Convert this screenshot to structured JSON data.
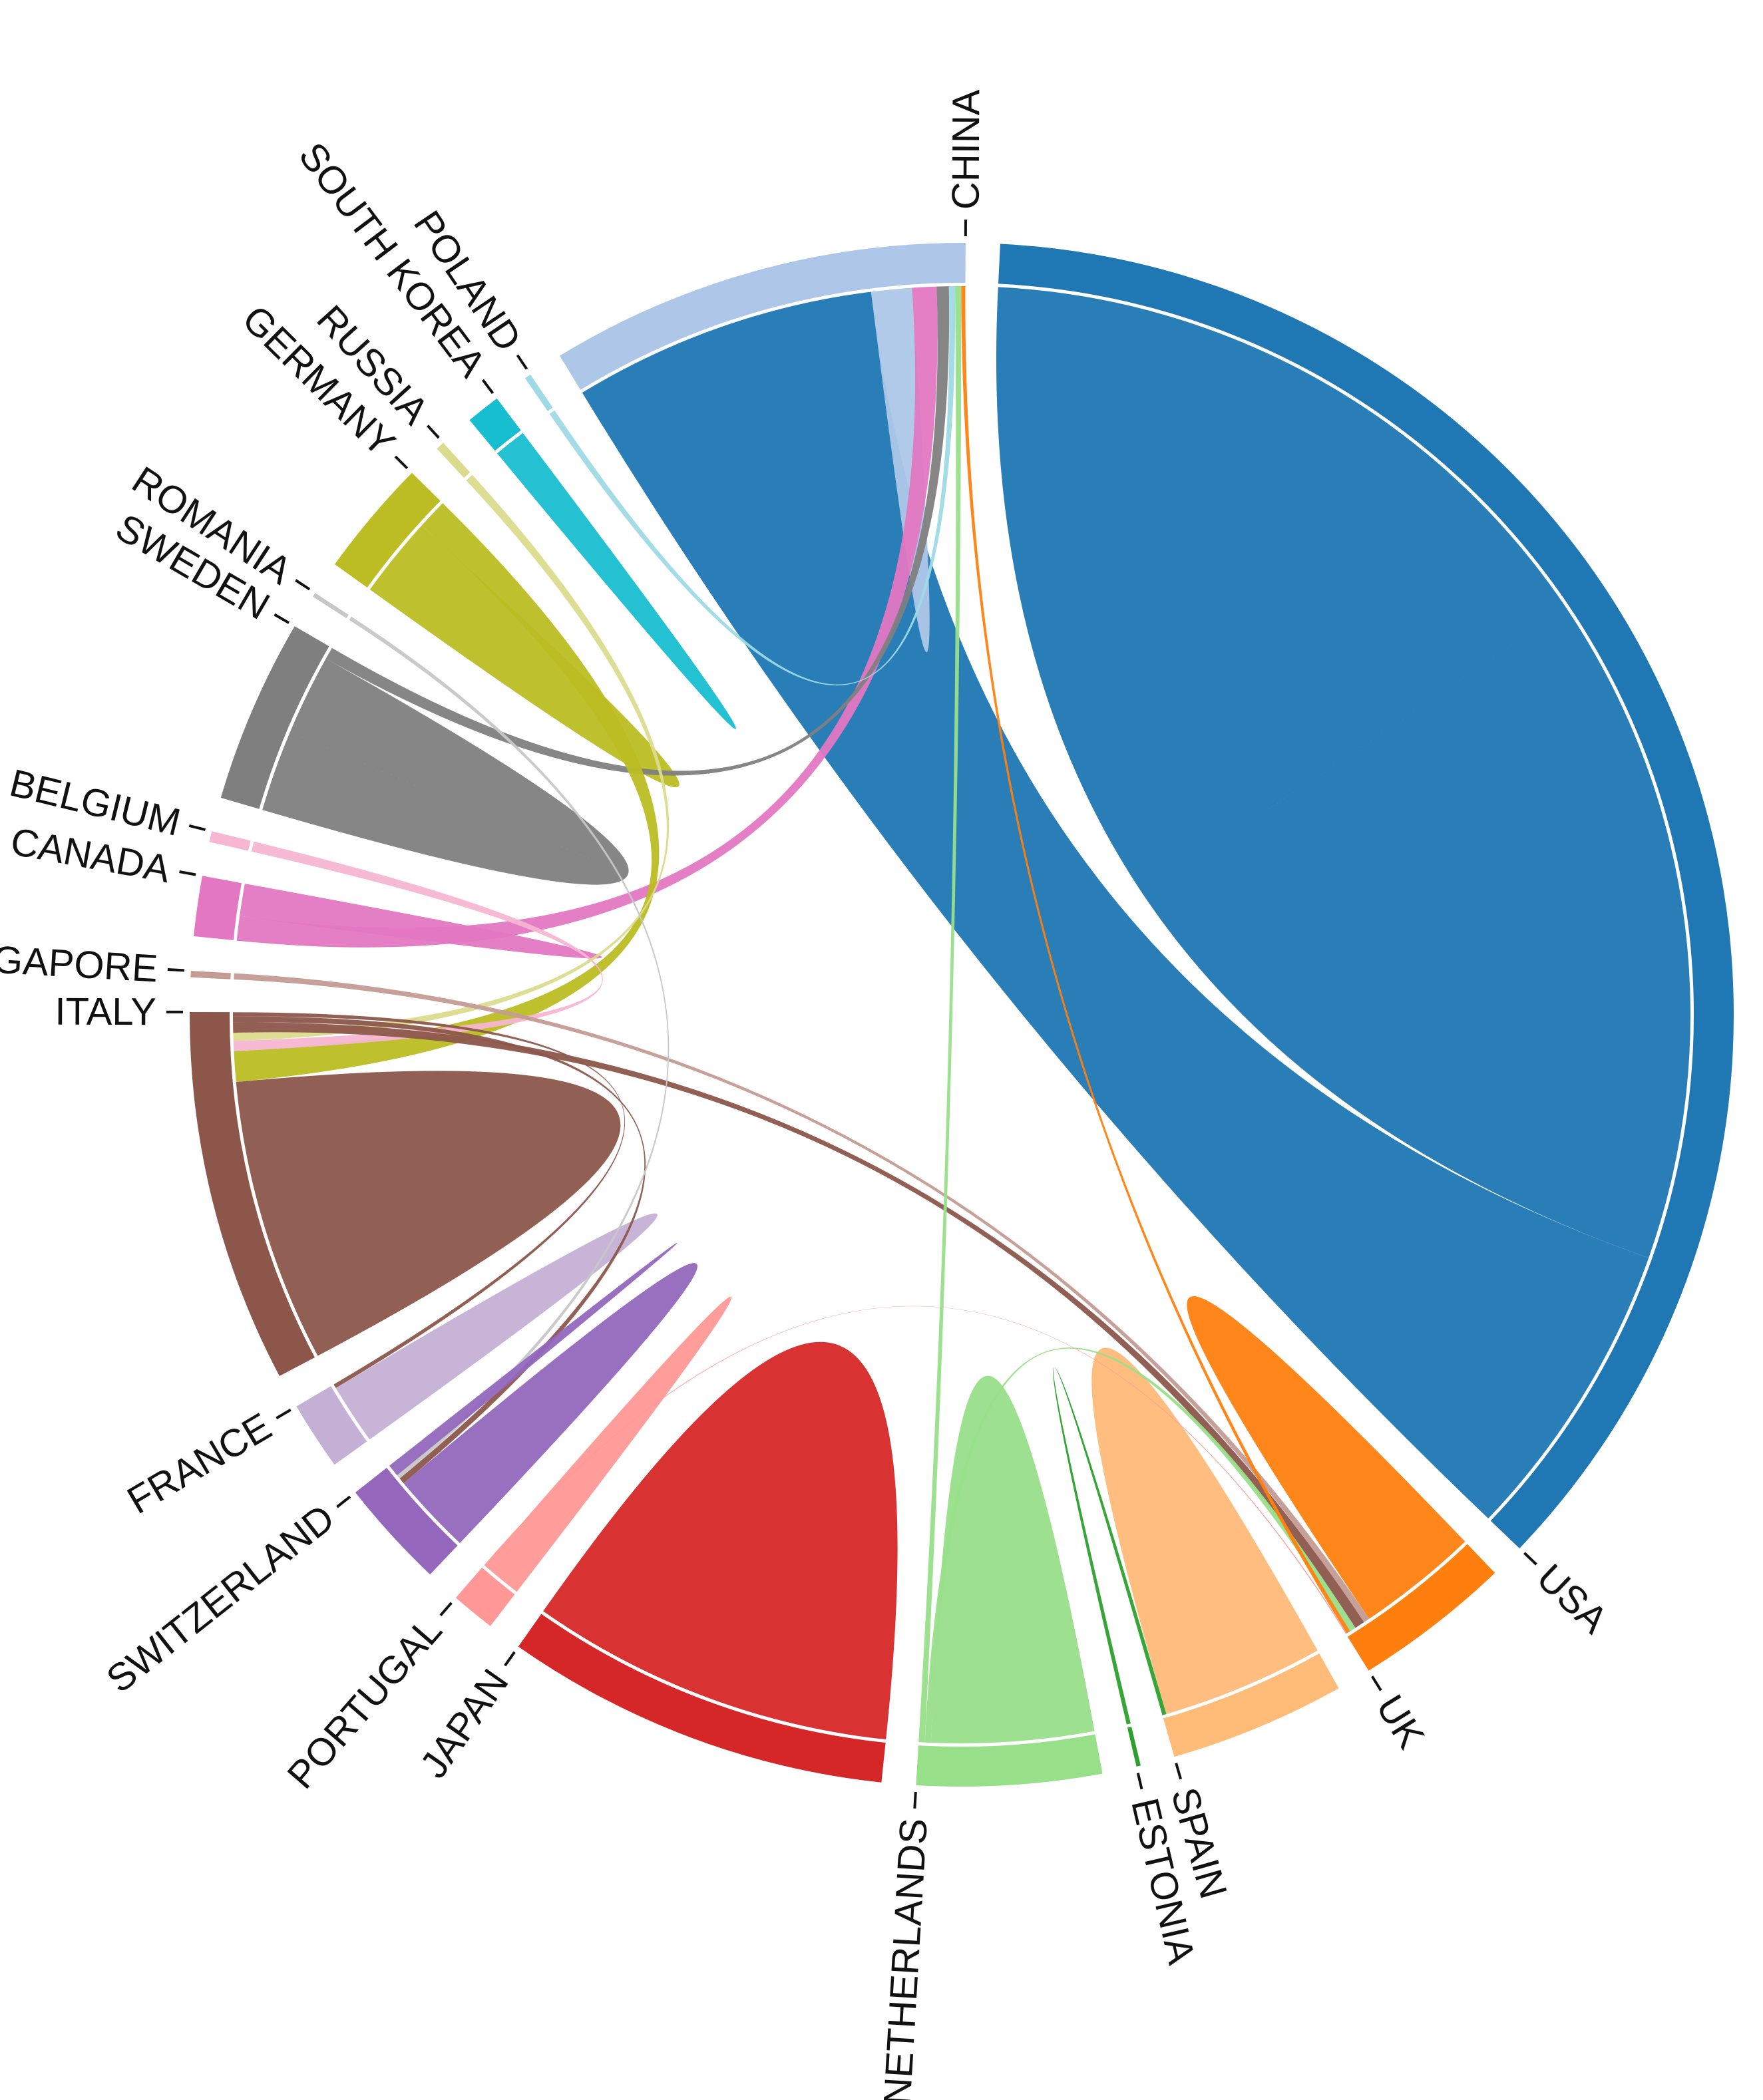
{
  "chart_data": {
    "type": "chord",
    "title": "",
    "groups": [
      {
        "name": "USA",
        "color": "#1f77b4"
      },
      {
        "name": "UK",
        "color": "#ff7f0e"
      },
      {
        "name": "SPAIN",
        "color": "#ffbb78"
      },
      {
        "name": "ESTONIA",
        "color": "#2ca02c"
      },
      {
        "name": "NETHERLANDS",
        "color": "#98df8a"
      },
      {
        "name": "JAPAN",
        "color": "#d62728"
      },
      {
        "name": "PORTUGAL",
        "color": "#ff9896"
      },
      {
        "name": "SWITZERLAND",
        "color": "#9467bd"
      },
      {
        "name": "FRANCE",
        "color": "#c5b0d5"
      },
      {
        "name": "ITALY",
        "color": "#8c564b"
      },
      {
        "name": "SINGAPORE",
        "color": "#c49c94"
      },
      {
        "name": "CANADA",
        "color": "#e377c2"
      },
      {
        "name": "BELGIUM",
        "color": "#f7b6d2"
      },
      {
        "name": "SWEDEN",
        "color": "#7f7f7f"
      },
      {
        "name": "ROMANIA",
        "color": "#c7c7c7"
      },
      {
        "name": "GERMANY",
        "color": "#bcbd22"
      },
      {
        "name": "RUSSIA",
        "color": "#dbdb8d"
      },
      {
        "name": "SOUTH KOREA",
        "color": "#17becf"
      },
      {
        "name": "POLAND",
        "color": "#9edae5"
      },
      {
        "name": "CHINA",
        "color": "#aec7e8"
      }
    ],
    "links": [
      {
        "source": "USA",
        "target": "USA",
        "value": 33
      },
      {
        "source": "USA",
        "target": "CHINA",
        "value": 15
      },
      {
        "source": "CHINA",
        "target": "CHINA",
        "value": 1
      },
      {
        "source": "UK",
        "target": "UK",
        "value": 3
      },
      {
        "source": "SPAIN",
        "target": "SPAIN",
        "value": 4
      },
      {
        "source": "NETHERLANDS",
        "target": "NETHERLANDS",
        "value": 4
      },
      {
        "source": "JAPAN",
        "target": "JAPAN",
        "value": 9
      },
      {
        "source": "ITALY",
        "target": "ITALY",
        "value": 7
      },
      {
        "source": "SWEDEN",
        "target": "SWEDEN",
        "value": 4
      },
      {
        "source": "PORTUGAL",
        "target": "PORTUGAL",
        "value": 1
      },
      {
        "source": "SWITZERLAND",
        "target": "SWITZERLAND",
        "value": 2
      },
      {
        "source": "FRANCE",
        "target": "FRANCE",
        "value": 1.5
      },
      {
        "source": "GERMANY",
        "target": "GERMANY",
        "value": 2
      },
      {
        "source": "SOUTH KOREA",
        "target": "SOUTH KOREA",
        "value": 0.8
      },
      {
        "source": "CANADA",
        "target": "CHINA",
        "value": 1.2
      },
      {
        "source": "CANADA",
        "target": "CANADA",
        "value": 0.8
      },
      {
        "source": "SWEDEN",
        "target": "CHINA",
        "value": 0.6
      },
      {
        "source": "POLAND",
        "target": "CHINA",
        "value": 0.3
      },
      {
        "source": "GERMANY",
        "target": "ITALY",
        "value": 1.5
      },
      {
        "source": "BELGIUM",
        "target": "ITALY",
        "value": 0.5
      },
      {
        "source": "RUSSIA",
        "target": "ITALY",
        "value": 0.4
      },
      {
        "source": "SINGAPORE",
        "target": "UK",
        "value": 0.3
      },
      {
        "source": "ITALY",
        "target": "UK",
        "value": 0.5
      },
      {
        "source": "ITALY",
        "target": "SWITZERLAND",
        "value": 0.3
      },
      {
        "source": "ITALY",
        "target": "FRANCE",
        "value": 0.2
      },
      {
        "source": "ROMANIA",
        "target": "SWITZERLAND",
        "value": 0.2
      },
      {
        "source": "SWITZERLAND",
        "target": "SWITZERLAND",
        "value": 0.3
      },
      {
        "source": "NETHERLANDS",
        "target": "UK",
        "value": 0.3
      },
      {
        "source": "NETHERLANDS",
        "target": "CHINA",
        "value": 0.3
      },
      {
        "source": "ESTONIA",
        "target": "SPAIN",
        "value": 0.2
      },
      {
        "source": "UK",
        "target": "CHINA",
        "value": 0.2
      },
      {
        "source": "PORTUGAL",
        "target": "UK",
        "value": 0.05
      }
    ]
  }
}
